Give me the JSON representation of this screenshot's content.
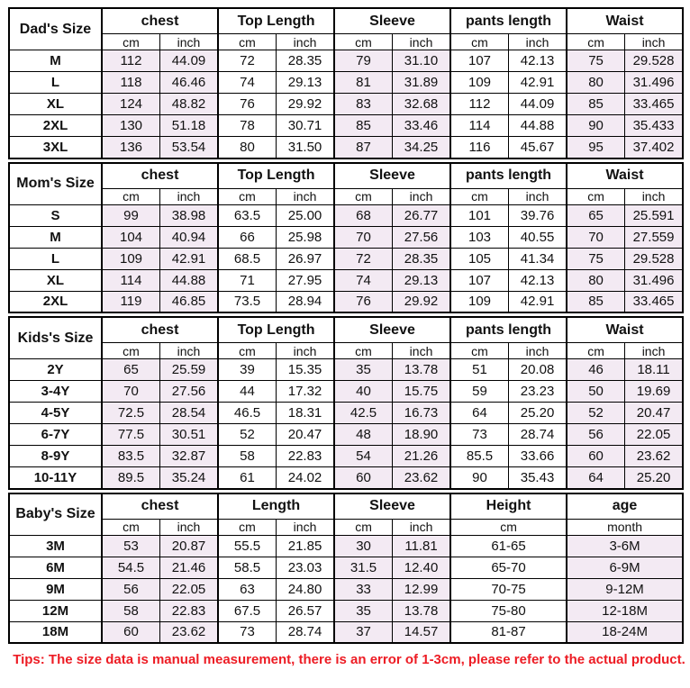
{
  "colors": {
    "shaded_cell": "#f3eaf3",
    "border": "#000000",
    "tips_red": "#ed1c24"
  },
  "tips": "Tips: The size data is manual measurement, there is an error of 1-3cm, please refer to the actual product.",
  "chart_data": [
    {
      "type": "table",
      "title": "Dad's Size",
      "columns": [
        {
          "label": "chest",
          "subs": [
            "cm",
            "inch"
          ],
          "shaded": true
        },
        {
          "label": "Top Length",
          "subs": [
            "cm",
            "inch"
          ],
          "shaded": false
        },
        {
          "label": "Sleeve",
          "subs": [
            "cm",
            "inch"
          ],
          "shaded": true
        },
        {
          "label": "pants length",
          "subs": [
            "cm",
            "inch"
          ],
          "shaded": false
        },
        {
          "label": "Waist",
          "subs": [
            "cm",
            "inch"
          ],
          "shaded": true
        }
      ],
      "rows": [
        {
          "size": "M",
          "values": [
            "112",
            "44.09",
            "72",
            "28.35",
            "79",
            "31.10",
            "107",
            "42.13",
            "75",
            "29.528"
          ]
        },
        {
          "size": "L",
          "values": [
            "118",
            "46.46",
            "74",
            "29.13",
            "81",
            "31.89",
            "109",
            "42.91",
            "80",
            "31.496"
          ]
        },
        {
          "size": "XL",
          "values": [
            "124",
            "48.82",
            "76",
            "29.92",
            "83",
            "32.68",
            "112",
            "44.09",
            "85",
            "33.465"
          ]
        },
        {
          "size": "2XL",
          "values": [
            "130",
            "51.18",
            "78",
            "30.71",
            "85",
            "33.46",
            "114",
            "44.88",
            "90",
            "35.433"
          ]
        },
        {
          "size": "3XL",
          "values": [
            "136",
            "53.54",
            "80",
            "31.50",
            "87",
            "34.25",
            "116",
            "45.67",
            "95",
            "37.402"
          ]
        }
      ]
    },
    {
      "type": "table",
      "title": "Mom's Size",
      "columns": [
        {
          "label": "chest",
          "subs": [
            "cm",
            "inch"
          ],
          "shaded": true
        },
        {
          "label": "Top Length",
          "subs": [
            "cm",
            "inch"
          ],
          "shaded": false
        },
        {
          "label": "Sleeve",
          "subs": [
            "cm",
            "inch"
          ],
          "shaded": true
        },
        {
          "label": "pants length",
          "subs": [
            "cm",
            "inch"
          ],
          "shaded": false
        },
        {
          "label": "Waist",
          "subs": [
            "cm",
            "inch"
          ],
          "shaded": true
        }
      ],
      "rows": [
        {
          "size": "S",
          "values": [
            "99",
            "38.98",
            "63.5",
            "25.00",
            "68",
            "26.77",
            "101",
            "39.76",
            "65",
            "25.591"
          ]
        },
        {
          "size": "M",
          "values": [
            "104",
            "40.94",
            "66",
            "25.98",
            "70",
            "27.56",
            "103",
            "40.55",
            "70",
            "27.559"
          ]
        },
        {
          "size": "L",
          "values": [
            "109",
            "42.91",
            "68.5",
            "26.97",
            "72",
            "28.35",
            "105",
            "41.34",
            "75",
            "29.528"
          ]
        },
        {
          "size": "XL",
          "values": [
            "114",
            "44.88",
            "71",
            "27.95",
            "74",
            "29.13",
            "107",
            "42.13",
            "80",
            "31.496"
          ]
        },
        {
          "size": "2XL",
          "values": [
            "119",
            "46.85",
            "73.5",
            "28.94",
            "76",
            "29.92",
            "109",
            "42.91",
            "85",
            "33.465"
          ]
        }
      ]
    },
    {
      "type": "table",
      "title": "Kids's Size",
      "columns": [
        {
          "label": "chest",
          "subs": [
            "cm",
            "inch"
          ],
          "shaded": true
        },
        {
          "label": "Top Length",
          "subs": [
            "cm",
            "inch"
          ],
          "shaded": false
        },
        {
          "label": "Sleeve",
          "subs": [
            "cm",
            "inch"
          ],
          "shaded": true
        },
        {
          "label": "pants length",
          "subs": [
            "cm",
            "inch"
          ],
          "shaded": false
        },
        {
          "label": "Waist",
          "subs": [
            "cm",
            "inch"
          ],
          "shaded": true
        }
      ],
      "rows": [
        {
          "size": "2Y",
          "values": [
            "65",
            "25.59",
            "39",
            "15.35",
            "35",
            "13.78",
            "51",
            "20.08",
            "46",
            "18.11"
          ]
        },
        {
          "size": "3-4Y",
          "values": [
            "70",
            "27.56",
            "44",
            "17.32",
            "40",
            "15.75",
            "59",
            "23.23",
            "50",
            "19.69"
          ]
        },
        {
          "size": "4-5Y",
          "values": [
            "72.5",
            "28.54",
            "46.5",
            "18.31",
            "42.5",
            "16.73",
            "64",
            "25.20",
            "52",
            "20.47"
          ]
        },
        {
          "size": "6-7Y",
          "values": [
            "77.5",
            "30.51",
            "52",
            "20.47",
            "48",
            "18.90",
            "73",
            "28.74",
            "56",
            "22.05"
          ]
        },
        {
          "size": "8-9Y",
          "values": [
            "83.5",
            "32.87",
            "58",
            "22.83",
            "54",
            "21.26",
            "85.5",
            "33.66",
            "60",
            "23.62"
          ]
        },
        {
          "size": "10-11Y",
          "values": [
            "89.5",
            "35.24",
            "61",
            "24.02",
            "60",
            "23.62",
            "90",
            "35.43",
            "64",
            "25.20"
          ]
        }
      ]
    },
    {
      "type": "table",
      "title": "Baby's Size",
      "columns": [
        {
          "label": "chest",
          "subs": [
            "cm",
            "inch"
          ],
          "shaded": true
        },
        {
          "label": "Length",
          "subs": [
            "cm",
            "inch"
          ],
          "shaded": false
        },
        {
          "label": "Sleeve",
          "subs": [
            "cm",
            "inch"
          ],
          "shaded": true
        },
        {
          "label": "Height",
          "subs": [
            "cm"
          ],
          "span": 2,
          "shaded": false
        },
        {
          "label": "age",
          "subs": [
            "month"
          ],
          "span": 2,
          "shaded": true
        }
      ],
      "rows": [
        {
          "size": "3M",
          "values": [
            "53",
            "20.87",
            "55.5",
            "21.85",
            "30",
            "11.81",
            "61-65",
            "3-6M"
          ]
        },
        {
          "size": "6M",
          "values": [
            "54.5",
            "21.46",
            "58.5",
            "23.03",
            "31.5",
            "12.40",
            "65-70",
            "6-9M"
          ]
        },
        {
          "size": "9M",
          "values": [
            "56",
            "22.05",
            "63",
            "24.80",
            "33",
            "12.99",
            "70-75",
            "9-12M"
          ]
        },
        {
          "size": "12M",
          "values": [
            "58",
            "22.83",
            "67.5",
            "26.57",
            "35",
            "13.78",
            "75-80",
            "12-18M"
          ]
        },
        {
          "size": "18M",
          "values": [
            "60",
            "23.62",
            "73",
            "28.74",
            "37",
            "14.57",
            "81-87",
            "18-24M"
          ]
        }
      ]
    }
  ]
}
